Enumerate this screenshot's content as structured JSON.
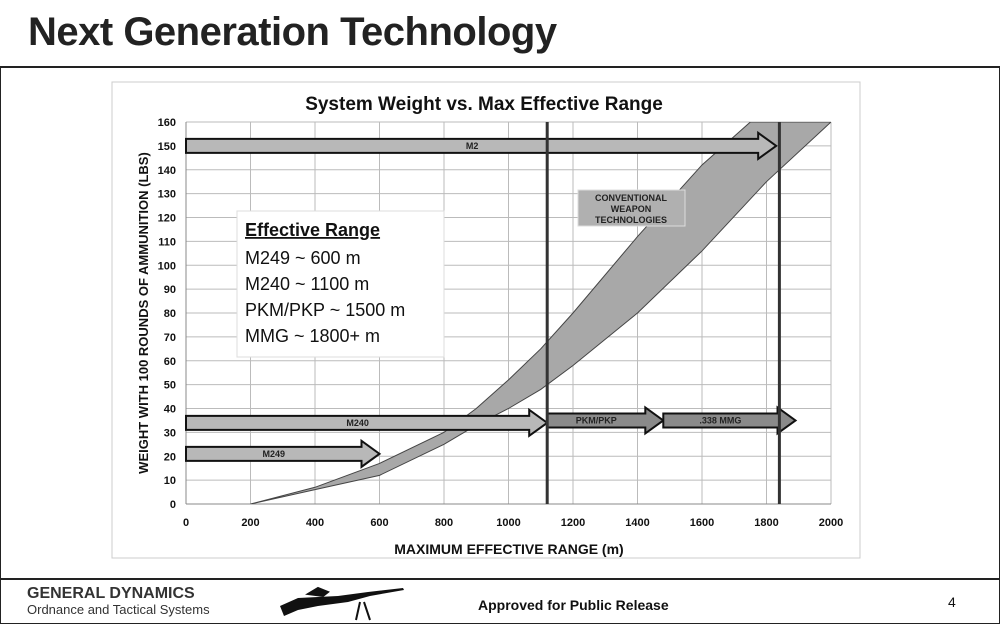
{
  "slide": {
    "title": "Next Generation Technology",
    "brand": "GENERAL DYNAMICS",
    "division": "Ordnance and Tactical Systems",
    "release": "Approved for Public Release",
    "page": "4"
  },
  "chart_data": {
    "type": "area",
    "title": "System Weight vs. Max Effective Range",
    "xlabel": "MAXIMUM EFFECTIVE RANGE (m)",
    "ylabel": "WEIGHT WITH 100 ROUNDS OF AMMUNITION (LBS)",
    "xlim": [
      0,
      2000
    ],
    "ylim": [
      0,
      160
    ],
    "xticks": [
      0,
      200,
      400,
      600,
      800,
      1000,
      1200,
      1400,
      1600,
      1800,
      2000
    ],
    "yticks": [
      0,
      10,
      20,
      30,
      40,
      50,
      60,
      70,
      80,
      90,
      100,
      110,
      120,
      130,
      140,
      150,
      160
    ],
    "grid": true,
    "band": {
      "label": "CONVENTIONAL WEAPON TECHNOLOGIES",
      "upper": [
        [
          200,
          0
        ],
        [
          400,
          7
        ],
        [
          600,
          17
        ],
        [
          800,
          30
        ],
        [
          900,
          40
        ],
        [
          1000,
          52
        ],
        [
          1100,
          65
        ],
        [
          1200,
          80
        ],
        [
          1400,
          112
        ],
        [
          1600,
          142
        ],
        [
          1750,
          160
        ]
      ],
      "lower": [
        [
          200,
          0
        ],
        [
          400,
          6
        ],
        [
          600,
          12
        ],
        [
          800,
          25
        ],
        [
          900,
          33
        ],
        [
          1000,
          40
        ],
        [
          1100,
          48
        ],
        [
          1200,
          58
        ],
        [
          1400,
          80
        ],
        [
          1600,
          106
        ],
        [
          1800,
          135
        ],
        [
          2000,
          160
        ]
      ]
    },
    "arrows": [
      {
        "label": "M2",
        "from": 0,
        "to": 1830,
        "y": 150
      },
      {
        "label": "M240",
        "from": 0,
        "to": 1120,
        "y": 34
      },
      {
        "label": "PKM/PKP",
        "from": 1120,
        "to": 1480,
        "y": 35
      },
      {
        "label": ".338 MMG",
        "from": 1480,
        "to": 1890,
        "y": 35
      },
      {
        "label": "M249",
        "from": 0,
        "to": 600,
        "y": 21
      }
    ],
    "vlines": [
      1120,
      1840
    ],
    "legend_box": {
      "heading": "Effective Range",
      "lines": [
        "M249 ~ 600 m",
        "M240 ~ 1100 m",
        "PKM/PKP ~ 1500 m",
        "MMG ~ 1800+ m"
      ]
    }
  }
}
